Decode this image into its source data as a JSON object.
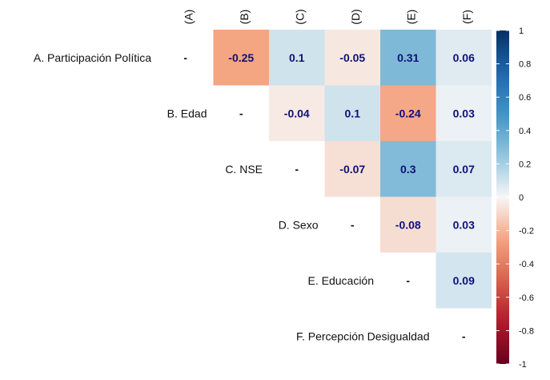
{
  "chart_data": {
    "type": "heatmap",
    "variant": "correlation-upper-triangle",
    "columns": [
      "(A)",
      "(B)",
      "(C)",
      "(D)",
      "(E)",
      "(F)"
    ],
    "rows": [
      "A. Participación Política",
      "B. Edad",
      "C. NSE",
      "D. Sexo",
      "E. Educación",
      "F. Percepción Desigualdad"
    ],
    "diagonal_label": "-",
    "matrix": [
      [
        null,
        -0.25,
        0.1,
        -0.05,
        0.31,
        0.06
      ],
      [
        null,
        null,
        -0.04,
        0.1,
        -0.24,
        0.03
      ],
      [
        null,
        null,
        null,
        -0.07,
        0.3,
        0.07
      ],
      [
        null,
        null,
        null,
        null,
        -0.08,
        0.03
      ],
      [
        null,
        null,
        null,
        null,
        null,
        0.09
      ],
      [
        null,
        null,
        null,
        null,
        null,
        null
      ]
    ],
    "colorbar": {
      "range": [
        -1,
        1
      ],
      "ticks": [
        1,
        0.8,
        0.6,
        0.4,
        0.2,
        0,
        -0.2,
        -0.4,
        -0.6,
        -0.8,
        -1
      ],
      "low_color": "#67001f",
      "mid_color": "#f7f7f7",
      "high_color": "#053061"
    }
  }
}
